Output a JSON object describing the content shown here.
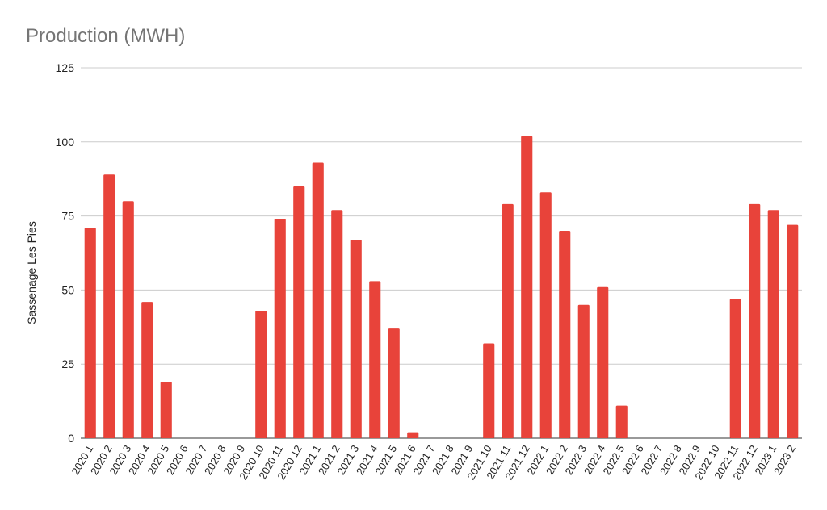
{
  "chart_data": {
    "type": "bar",
    "title": "Production (MWH)",
    "xlabel": "",
    "ylabel": "Sassenage Les Pies",
    "ylim": [
      0,
      125
    ],
    "yticks": [
      0,
      25,
      50,
      75,
      100,
      125
    ],
    "grid": true,
    "bar_color": "#e8433a",
    "categories": [
      "2020 1",
      "2020 2",
      "2020 3",
      "2020 4",
      "2020 5",
      "2020 6",
      "2020 7",
      "2020 8",
      "2020 9",
      "2020 10",
      "2020 11",
      "2020 12",
      "2021 1",
      "2021 2",
      "2021 3",
      "2021 4",
      "2021 5",
      "2021 6",
      "2021 7",
      "2021 8",
      "2021 9",
      "2021 10",
      "2021 11",
      "2021 12",
      "2022 1",
      "2022 2",
      "2022 3",
      "2022 4",
      "2022 5",
      "2022 6",
      "2022 7",
      "2022 8",
      "2022 9",
      "2022 10",
      "2022 11",
      "2022 12",
      "2023 1",
      "2023 2"
    ],
    "values": [
      71,
      89,
      80,
      46,
      19,
      0,
      0,
      0,
      0,
      43,
      74,
      85,
      93,
      77,
      67,
      53,
      37,
      2,
      0,
      0,
      0,
      32,
      79,
      102,
      83,
      70,
      45,
      51,
      11,
      0,
      0,
      0,
      0,
      0,
      47,
      79,
      77,
      72
    ]
  }
}
